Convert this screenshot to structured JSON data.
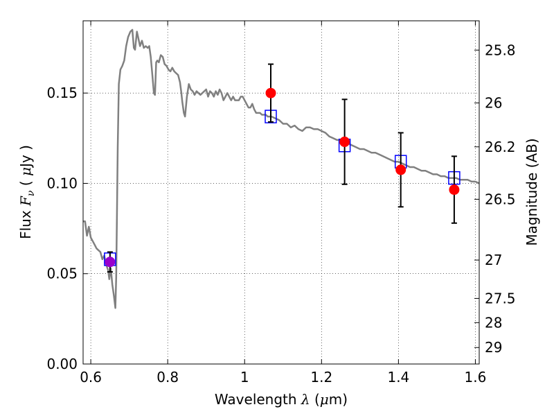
{
  "chart_data": {
    "type": "scatter",
    "xlabel": {
      "prefix": "Wavelength  ",
      "symbol": "λ",
      "suffix": " (",
      "unit_symbol": "μ",
      "unit": "m)"
    },
    "ylabel": {
      "prefix": "Flux  ",
      "symbol": "F",
      "subscript": "ν",
      "mid": "  ( ",
      "unit_symbol": "μ",
      "unit": "Jy )"
    },
    "y2label": "Magnitude (AB)",
    "xlim": [
      0.58,
      1.61
    ],
    "ylim": [
      0.0,
      0.19
    ],
    "grid": true,
    "x_ticks": [
      {
        "v": 0.6,
        "label": "0.6"
      },
      {
        "v": 0.8,
        "label": "0.8"
      },
      {
        "v": 1.0,
        "label": "1"
      },
      {
        "v": 1.2,
        "label": "1.2"
      },
      {
        "v": 1.4,
        "label": "1.4"
      },
      {
        "v": 1.6,
        "label": "1.6"
      }
    ],
    "y_ticks": [
      {
        "v": 0.0,
        "label": "0.00"
      },
      {
        "v": 0.05,
        "label": "0.05"
      },
      {
        "v": 0.1,
        "label": "0.10"
      },
      {
        "v": 0.15,
        "label": "0.15"
      }
    ],
    "mag_ticks": [
      {
        "v": 25.8,
        "label": "25.8"
      },
      {
        "v": 26.0,
        "label": "26"
      },
      {
        "v": 26.2,
        "label": "26.2"
      },
      {
        "v": 26.5,
        "label": "26.5"
      },
      {
        "v": 27.0,
        "label": "27"
      },
      {
        "v": 27.5,
        "label": "27.5"
      },
      {
        "v": 28.0,
        "label": "28"
      },
      {
        "v": 29.0,
        "label": "29"
      }
    ],
    "series": [
      {
        "kind": "model-spectrum",
        "color": "#808080",
        "points": [
          [
            0.58,
            0.079
          ],
          [
            0.585,
            0.079
          ],
          [
            0.59,
            0.071
          ],
          [
            0.595,
            0.076
          ],
          [
            0.6,
            0.07
          ],
          [
            0.605,
            0.068
          ],
          [
            0.61,
            0.066
          ],
          [
            0.615,
            0.064
          ],
          [
            0.62,
            0.063
          ],
          [
            0.625,
            0.062
          ],
          [
            0.63,
            0.058
          ],
          [
            0.635,
            0.06
          ],
          [
            0.64,
            0.055
          ],
          [
            0.645,
            0.052
          ],
          [
            0.648,
            0.047
          ],
          [
            0.652,
            0.053
          ],
          [
            0.656,
            0.044
          ],
          [
            0.66,
            0.038
          ],
          [
            0.664,
            0.031
          ],
          [
            0.666,
            0.048
          ],
          [
            0.668,
            0.083
          ],
          [
            0.67,
            0.12
          ],
          [
            0.673,
            0.155
          ],
          [
            0.677,
            0.163
          ],
          [
            0.682,
            0.165
          ],
          [
            0.687,
            0.168
          ],
          [
            0.692,
            0.176
          ],
          [
            0.697,
            0.181
          ],
          [
            0.703,
            0.184
          ],
          [
            0.708,
            0.185
          ],
          [
            0.712,
            0.175
          ],
          [
            0.715,
            0.174
          ],
          [
            0.72,
            0.184
          ],
          [
            0.723,
            0.181
          ],
          [
            0.728,
            0.176
          ],
          [
            0.733,
            0.179
          ],
          [
            0.738,
            0.175
          ],
          [
            0.743,
            0.176
          ],
          [
            0.748,
            0.175
          ],
          [
            0.752,
            0.176
          ],
          [
            0.756,
            0.17
          ],
          [
            0.76,
            0.16
          ],
          [
            0.764,
            0.15
          ],
          [
            0.767,
            0.149
          ],
          [
            0.77,
            0.167
          ],
          [
            0.773,
            0.168
          ],
          [
            0.777,
            0.167
          ],
          [
            0.782,
            0.171
          ],
          [
            0.787,
            0.17
          ],
          [
            0.792,
            0.166
          ],
          [
            0.797,
            0.165
          ],
          [
            0.802,
            0.163
          ],
          [
            0.807,
            0.162
          ],
          [
            0.812,
            0.164
          ],
          [
            0.817,
            0.162
          ],
          [
            0.822,
            0.161
          ],
          [
            0.827,
            0.16
          ],
          [
            0.832,
            0.156
          ],
          [
            0.835,
            0.151
          ],
          [
            0.838,
            0.145
          ],
          [
            0.842,
            0.139
          ],
          [
            0.845,
            0.137
          ],
          [
            0.85,
            0.148
          ],
          [
            0.855,
            0.155
          ],
          [
            0.86,
            0.152
          ],
          [
            0.865,
            0.151
          ],
          [
            0.87,
            0.149
          ],
          [
            0.875,
            0.151
          ],
          [
            0.88,
            0.15
          ],
          [
            0.885,
            0.149
          ],
          [
            0.89,
            0.15
          ],
          [
            0.895,
            0.151
          ],
          [
            0.9,
            0.152
          ],
          [
            0.905,
            0.148
          ],
          [
            0.91,
            0.151
          ],
          [
            0.915,
            0.15
          ],
          [
            0.92,
            0.148
          ],
          [
            0.925,
            0.151
          ],
          [
            0.93,
            0.149
          ],
          [
            0.935,
            0.152
          ],
          [
            0.94,
            0.15
          ],
          [
            0.945,
            0.146
          ],
          [
            0.95,
            0.148
          ],
          [
            0.955,
            0.15
          ],
          [
            0.96,
            0.148
          ],
          [
            0.965,
            0.146
          ],
          [
            0.97,
            0.148
          ],
          [
            0.975,
            0.146
          ],
          [
            0.98,
            0.146
          ],
          [
            0.985,
            0.146
          ],
          [
            0.99,
            0.148
          ],
          [
            0.995,
            0.148
          ],
          [
            1.0,
            0.146
          ],
          [
            1.005,
            0.144
          ],
          [
            1.01,
            0.142
          ],
          [
            1.015,
            0.142
          ],
          [
            1.02,
            0.144
          ],
          [
            1.025,
            0.141
          ],
          [
            1.03,
            0.139
          ],
          [
            1.035,
            0.139
          ],
          [
            1.04,
            0.139
          ],
          [
            1.045,
            0.138
          ],
          [
            1.05,
            0.138
          ],
          [
            1.055,
            0.138
          ],
          [
            1.06,
            0.137
          ],
          [
            1.07,
            0.137
          ],
          [
            1.08,
            0.136
          ],
          [
            1.09,
            0.135
          ],
          [
            1.1,
            0.133
          ],
          [
            1.11,
            0.133
          ],
          [
            1.12,
            0.131
          ],
          [
            1.13,
            0.132
          ],
          [
            1.14,
            0.13
          ],
          [
            1.15,
            0.129
          ],
          [
            1.16,
            0.131
          ],
          [
            1.17,
            0.131
          ],
          [
            1.18,
            0.13
          ],
          [
            1.19,
            0.13
          ],
          [
            1.2,
            0.129
          ],
          [
            1.21,
            0.128
          ],
          [
            1.22,
            0.126
          ],
          [
            1.23,
            0.125
          ],
          [
            1.24,
            0.124
          ],
          [
            1.25,
            0.124
          ],
          [
            1.26,
            0.122
          ],
          [
            1.27,
            0.122
          ],
          [
            1.28,
            0.121
          ],
          [
            1.29,
            0.12
          ],
          [
            1.3,
            0.119
          ],
          [
            1.31,
            0.119
          ],
          [
            1.32,
            0.118
          ],
          [
            1.33,
            0.117
          ],
          [
            1.34,
            0.117
          ],
          [
            1.35,
            0.116
          ],
          [
            1.36,
            0.115
          ],
          [
            1.37,
            0.114
          ],
          [
            1.38,
            0.113
          ],
          [
            1.39,
            0.112
          ],
          [
            1.4,
            0.112
          ],
          [
            1.41,
            0.111
          ],
          [
            1.42,
            0.11
          ],
          [
            1.43,
            0.109
          ],
          [
            1.44,
            0.109
          ],
          [
            1.45,
            0.108
          ],
          [
            1.46,
            0.107
          ],
          [
            1.47,
            0.107
          ],
          [
            1.48,
            0.106
          ],
          [
            1.49,
            0.105
          ],
          [
            1.5,
            0.105
          ],
          [
            1.51,
            0.104
          ],
          [
            1.52,
            0.104
          ],
          [
            1.53,
            0.103
          ],
          [
            1.54,
            0.103
          ],
          [
            1.55,
            0.103
          ],
          [
            1.56,
            0.102
          ],
          [
            1.57,
            0.102
          ],
          [
            1.58,
            0.102
          ],
          [
            1.59,
            0.101
          ],
          [
            1.6,
            0.101
          ],
          [
            1.61,
            0.1
          ]
        ]
      },
      {
        "kind": "model-bandpass",
        "marker": "open-square",
        "color": "#0000ff",
        "points": [
          {
            "x": 0.65,
            "y": 0.058
          },
          {
            "x": 1.068,
            "y": 0.137
          },
          {
            "x": 1.26,
            "y": 0.121
          },
          {
            "x": 1.406,
            "y": 0.112
          },
          {
            "x": 1.545,
            "y": 0.103
          }
        ]
      },
      {
        "kind": "observed",
        "marker": "filled-circle",
        "color": "#ff0000",
        "points": [
          {
            "x": 1.068,
            "y": 0.15,
            "err": 0.016
          },
          {
            "x": 1.26,
            "y": 0.123,
            "err": 0.0235
          },
          {
            "x": 1.406,
            "y": 0.1075,
            "err": 0.0205
          },
          {
            "x": 1.545,
            "y": 0.0965,
            "err": 0.0185
          }
        ]
      },
      {
        "kind": "observed-optical",
        "marker": "filled-circle",
        "color": "#9900cc",
        "points": [
          {
            "x": 0.65,
            "y": 0.0565,
            "err": 0.0055
          }
        ]
      }
    ]
  }
}
